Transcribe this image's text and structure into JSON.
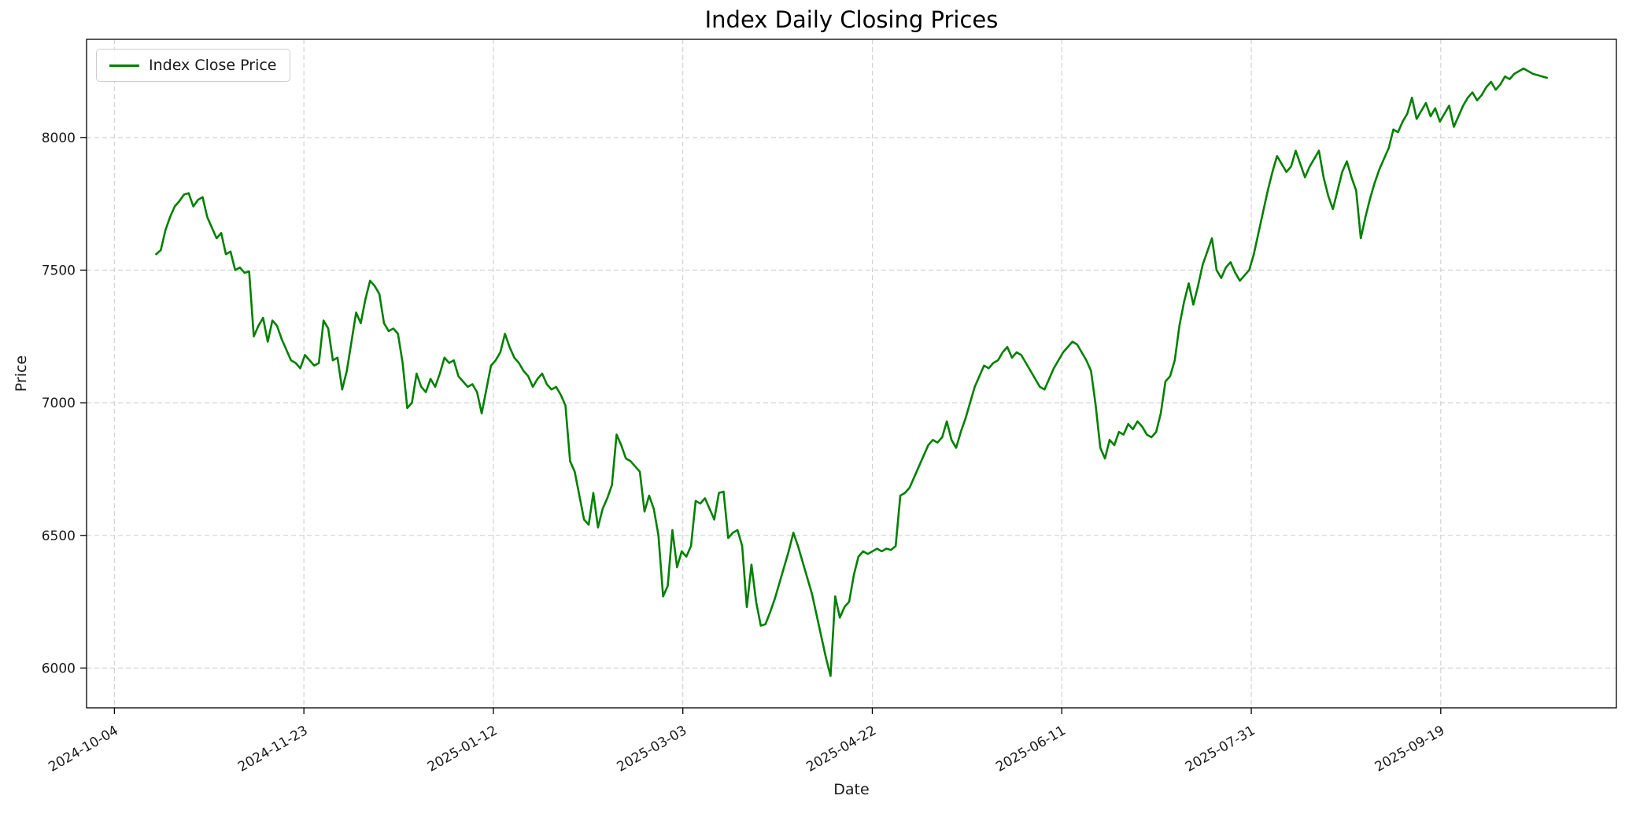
{
  "chart_data": {
    "type": "line",
    "title": "Index Daily Closing Prices",
    "xlabel": "Date",
    "ylabel": "Price",
    "legend_position": "upper-left",
    "grid": true,
    "grid_style": "dashed",
    "grid_color": "#cfcfcf",
    "background_color": "#ffffff",
    "text_color": "#1a1a1a",
    "x_start": "2024-10-15",
    "x_end": "2025-10-17",
    "x_tick_labels": [
      "2024-10-04",
      "2024-11-23",
      "2025-01-12",
      "2025-03-03",
      "2025-04-22",
      "2025-06-11",
      "2025-07-31",
      "2025-09-19"
    ],
    "y_ticks": [
      6000,
      6500,
      7000,
      7500,
      8000
    ],
    "ylim": [
      5850,
      8370
    ],
    "series": [
      {
        "name": "Index Close Price",
        "color": "#008000",
        "values": [
          7560,
          7575,
          7650,
          7700,
          7740,
          7760,
          7785,
          7790,
          7740,
          7765,
          7775,
          7700,
          7660,
          7620,
          7640,
          7560,
          7570,
          7500,
          7510,
          7490,
          7495,
          7250,
          7290,
          7320,
          7230,
          7310,
          7290,
          7240,
          7200,
          7160,
          7150,
          7130,
          7180,
          7160,
          7140,
          7150,
          7310,
          7280,
          7160,
          7170,
          7050,
          7120,
          7230,
          7340,
          7300,
          7390,
          7460,
          7440,
          7410,
          7300,
          7270,
          7280,
          7260,
          7150,
          6980,
          7000,
          7110,
          7060,
          7040,
          7090,
          7060,
          7110,
          7170,
          7150,
          7160,
          7100,
          7080,
          7060,
          7070,
          7040,
          6960,
          7050,
          7140,
          7160,
          7190,
          7260,
          7210,
          7170,
          7150,
          7120,
          7100,
          7060,
          7090,
          7110,
          7070,
          7050,
          7060,
          7030,
          6990,
          6780,
          6740,
          6650,
          6560,
          6540,
          6660,
          6530,
          6600,
          6640,
          6690,
          6880,
          6840,
          6790,
          6780,
          6760,
          6740,
          6590,
          6650,
          6600,
          6500,
          6270,
          6310,
          6520,
          6380,
          6440,
          6420,
          6460,
          6630,
          6620,
          6640,
          6600,
          6560,
          6660,
          6665,
          6490,
          6510,
          6520,
          6460,
          6230,
          6390,
          6250,
          6160,
          6165,
          6210,
          6260,
          6320,
          6380,
          6440,
          6510,
          6460,
          6400,
          6340,
          6280,
          6200,
          6120,
          6040,
          5970,
          6270,
          6190,
          6230,
          6250,
          6350,
          6420,
          6440,
          6430,
          6440,
          6450,
          6440,
          6450,
          6445,
          6460,
          6650,
          6660,
          6680,
          6720,
          6760,
          6800,
          6840,
          6860,
          6850,
          6870,
          6930,
          6860,
          6830,
          6890,
          6940,
          7000,
          7060,
          7100,
          7140,
          7130,
          7150,
          7160,
          7190,
          7210,
          7170,
          7190,
          7180,
          7150,
          7120,
          7090,
          7060,
          7050,
          7090,
          7130,
          7160,
          7190,
          7210,
          7230,
          7220,
          7190,
          7160,
          7120,
          6990,
          6830,
          6790,
          6860,
          6840,
          6890,
          6880,
          6920,
          6900,
          6930,
          6910,
          6880,
          6870,
          6890,
          6960,
          7080,
          7100,
          7160,
          7290,
          7380,
          7450,
          7370,
          7440,
          7520,
          7570,
          7620,
          7500,
          7470,
          7510,
          7530,
          7490,
          7460,
          7480,
          7500,
          7560,
          7640,
          7720,
          7800,
          7870,
          7930,
          7900,
          7870,
          7890,
          7950,
          7900,
          7850,
          7890,
          7920,
          7950,
          7850,
          7780,
          7730,
          7800,
          7870,
          7910,
          7850,
          7800,
          7620,
          7700,
          7770,
          7830,
          7880,
          7920,
          7960,
          8030,
          8020,
          8060,
          8090,
          8150,
          8070,
          8100,
          8130,
          8080,
          8110,
          8060,
          8090,
          8120,
          8040,
          8080,
          8120,
          8150,
          8170,
          8140,
          8160,
          8190,
          8210,
          8180,
          8200,
          8230,
          8220,
          8240,
          8250,
          8260,
          8250,
          8240,
          8235,
          8230,
          8225
        ]
      }
    ]
  }
}
